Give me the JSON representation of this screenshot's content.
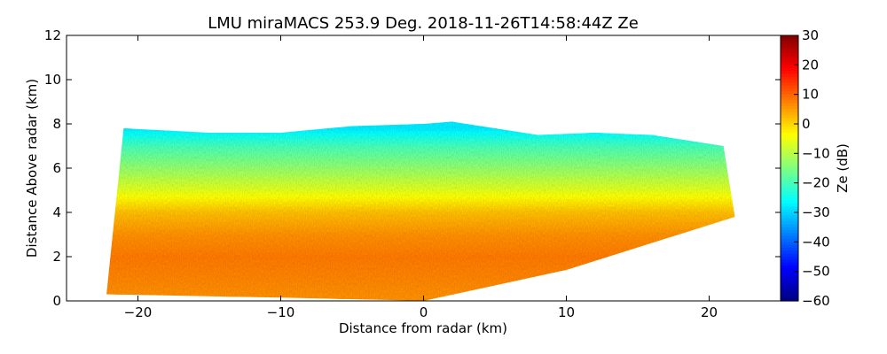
{
  "chart_data": {
    "type": "heatmap",
    "title": "LMU miraMACS 253.9 Deg. 2018-11-26T14:58:44Z  Ze",
    "xlabel": "Distance from radar (km)",
    "ylabel": "Distance Above radar  (km)",
    "xlim": [
      -25,
      25
    ],
    "ylim": [
      0,
      12
    ],
    "x_ticks": [
      -20,
      -10,
      0,
      10,
      20
    ],
    "x_tick_labels": [
      "−20",
      "−10",
      "0",
      "10",
      "20"
    ],
    "y_ticks": [
      0,
      2,
      4,
      6,
      8,
      10,
      12
    ],
    "y_tick_labels": [
      "0",
      "2",
      "4",
      "6",
      "8",
      "10",
      "12"
    ],
    "colorbar": {
      "label": "Ze (dB)",
      "range": [
        -60,
        30
      ],
      "ticks": [
        30,
        20,
        10,
        0,
        -10,
        -20,
        -30,
        -40,
        -50,
        -60
      ],
      "tick_labels": [
        "30",
        "20",
        "10",
        "0",
        "−10",
        "−20",
        "−30",
        "−40",
        "−50",
        "−60"
      ],
      "colormap": "jet"
    },
    "grid": false,
    "echo_region": {
      "top_height_km": [
        [
          -21,
          7.8
        ],
        [
          -15,
          7.6
        ],
        [
          -10,
          7.6
        ],
        [
          -5,
          7.9
        ],
        [
          0,
          8.0
        ],
        [
          2,
          8.1
        ],
        [
          4,
          7.9
        ],
        [
          8,
          7.5
        ],
        [
          12,
          7.6
        ],
        [
          16,
          7.5
        ],
        [
          21,
          7.0
        ]
      ],
      "bottom_height_km": [
        [
          -22.2,
          0.3
        ],
        [
          -10,
          0.15
        ],
        [
          -3,
          0.05
        ],
        [
          0,
          0.0
        ],
        [
          10,
          1.4
        ],
        [
          21.8,
          3.8
        ]
      ],
      "ze_profile_by_height_km": [
        [
          0.2,
          6
        ],
        [
          1.0,
          7
        ],
        [
          2.0,
          8
        ],
        [
          3.0,
          6
        ],
        [
          4.0,
          2
        ],
        [
          5.0,
          -6
        ],
        [
          6.0,
          -13
        ],
        [
          7.0,
          -20
        ],
        [
          7.8,
          -28
        ]
      ]
    }
  }
}
